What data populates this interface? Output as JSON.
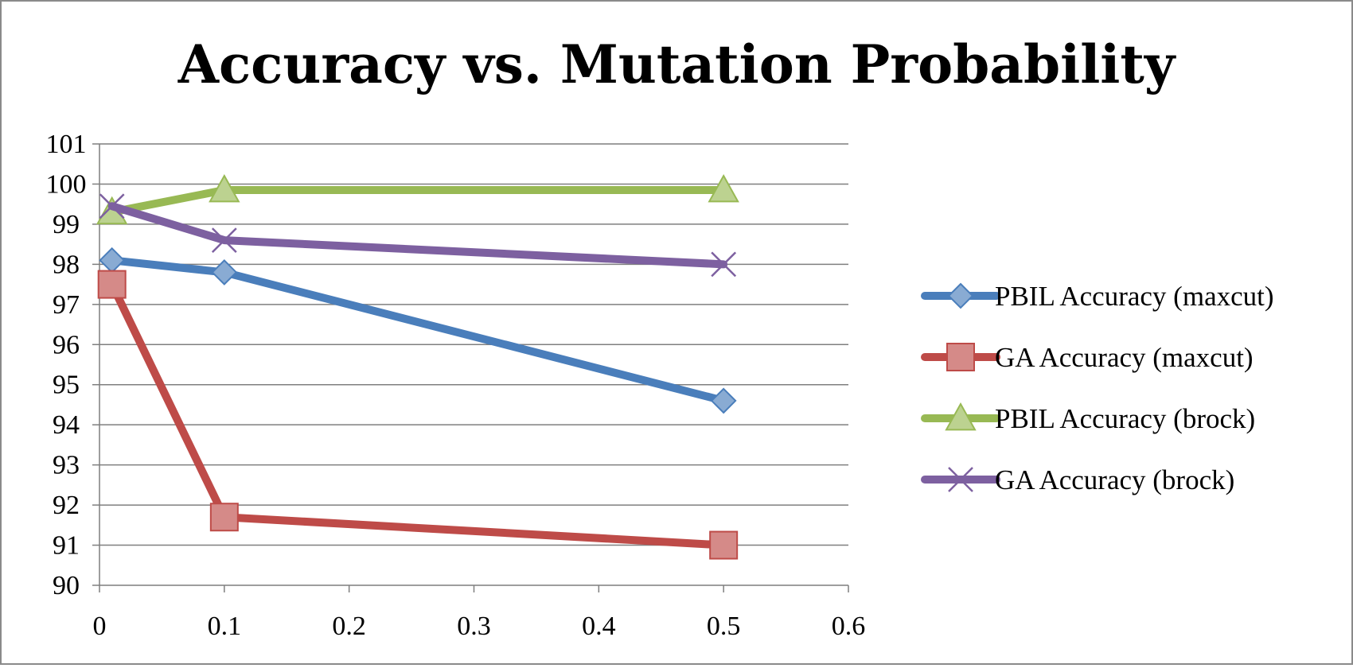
{
  "chart_data": {
    "type": "line",
    "title": "Accuracy vs. Mutation Probability",
    "xlabel": "",
    "ylabel": "",
    "xlim": [
      0,
      0.6
    ],
    "ylim": [
      90,
      101
    ],
    "x_ticks": [
      "0",
      "0.1",
      "0.2",
      "0.3",
      "0.4",
      "0.5",
      "0.6"
    ],
    "y_ticks": [
      "90",
      "91",
      "92",
      "93",
      "94",
      "95",
      "96",
      "97",
      "98",
      "99",
      "100",
      "101"
    ],
    "grid": "horizontal",
    "legend_position": "right",
    "series": [
      {
        "name": "PBIL Accuracy (maxcut)",
        "color": "#4a7ebb",
        "marker": "diamond",
        "x": [
          0.01,
          0.1,
          0.5
        ],
        "y": [
          98.1,
          97.8,
          94.6
        ]
      },
      {
        "name": "GA Accuracy (maxcut)",
        "color": "#be4b48",
        "marker": "square",
        "x": [
          0.01,
          0.1,
          0.5
        ],
        "y": [
          97.5,
          91.7,
          91.0
        ]
      },
      {
        "name": "PBIL Accuracy (brock)",
        "color": "#98b954",
        "marker": "triangle",
        "x": [
          0.01,
          0.1,
          0.5
        ],
        "y": [
          99.3,
          99.85,
          99.85
        ]
      },
      {
        "name": "GA Accuracy (brock)",
        "color": "#7d60a0",
        "marker": "x",
        "x": [
          0.01,
          0.1,
          0.5
        ],
        "y": [
          99.45,
          98.6,
          98.0
        ]
      }
    ]
  }
}
